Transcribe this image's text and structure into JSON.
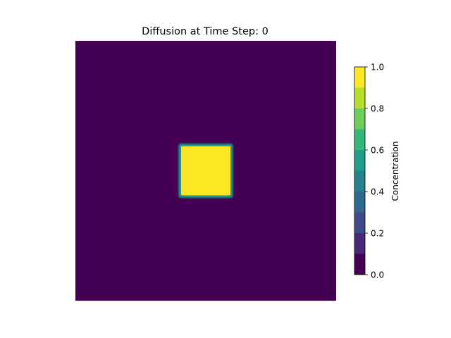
{
  "chart_data": {
    "type": "heatmap",
    "title": "Diffusion at Time Step: 0",
    "colorbar": {
      "label": "Concentration",
      "range": [
        0.0,
        1.0
      ],
      "ticks": [
        "0.0",
        "0.2",
        "0.4",
        "0.6",
        "0.8",
        "1.0"
      ],
      "colormap": "viridis",
      "colors": [
        "#440154",
        "#482878",
        "#3e4a89",
        "#31688e",
        "#26828e",
        "#1f9e89",
        "#35b779",
        "#6ece58",
        "#b5de2b",
        "#fde725"
      ]
    },
    "field": {
      "background_value": 0.0,
      "square_value": 1.0,
      "square_extent_fraction": [
        0.4,
        0.6
      ]
    },
    "axes_visible": false
  }
}
